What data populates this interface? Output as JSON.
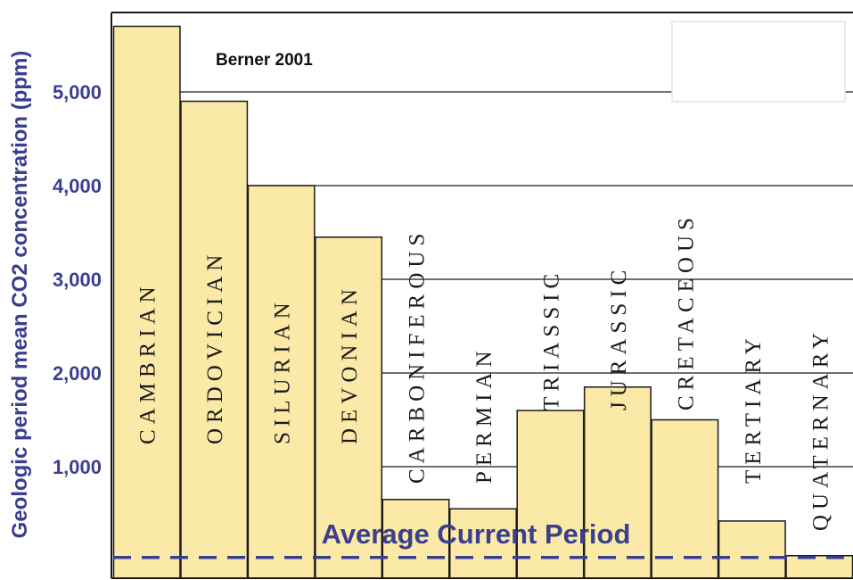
{
  "chart_data": {
    "type": "bar",
    "title": "",
    "ylabel": "Geologic period mean CO2 concentration (ppm)",
    "xlabel": "",
    "source_note": "Berner 2001",
    "ylim": [
      0,
      5800
    ],
    "yticks": [
      1000,
      2000,
      3000,
      4000,
      5000
    ],
    "ytick_labels": [
      "1,000",
      "2,000",
      "3,000",
      "4,000",
      "5,000"
    ],
    "grid": true,
    "categories": [
      "CAMBRIAN",
      "ORDOVICIAN",
      "SILURIAN",
      "DEVONIAN",
      "CARBONIFEROUS",
      "PERMIAN",
      "TRIASSIC",
      "JURASSIC",
      "CRETACEOUS",
      "TERTIARY",
      "QUATERNARY"
    ],
    "values": [
      5700,
      4900,
      4000,
      3450,
      650,
      550,
      1600,
      1850,
      1500,
      420,
      50
    ],
    "reference_line": {
      "label": "Average Current Period",
      "value": 50,
      "style": "dashed"
    },
    "colors": {
      "bar_fill": "#fbe9a7",
      "bar_stroke": "#1a1a1a",
      "axis_text": "#3a3f8f",
      "reference_line": "#3a3f8f"
    }
  }
}
